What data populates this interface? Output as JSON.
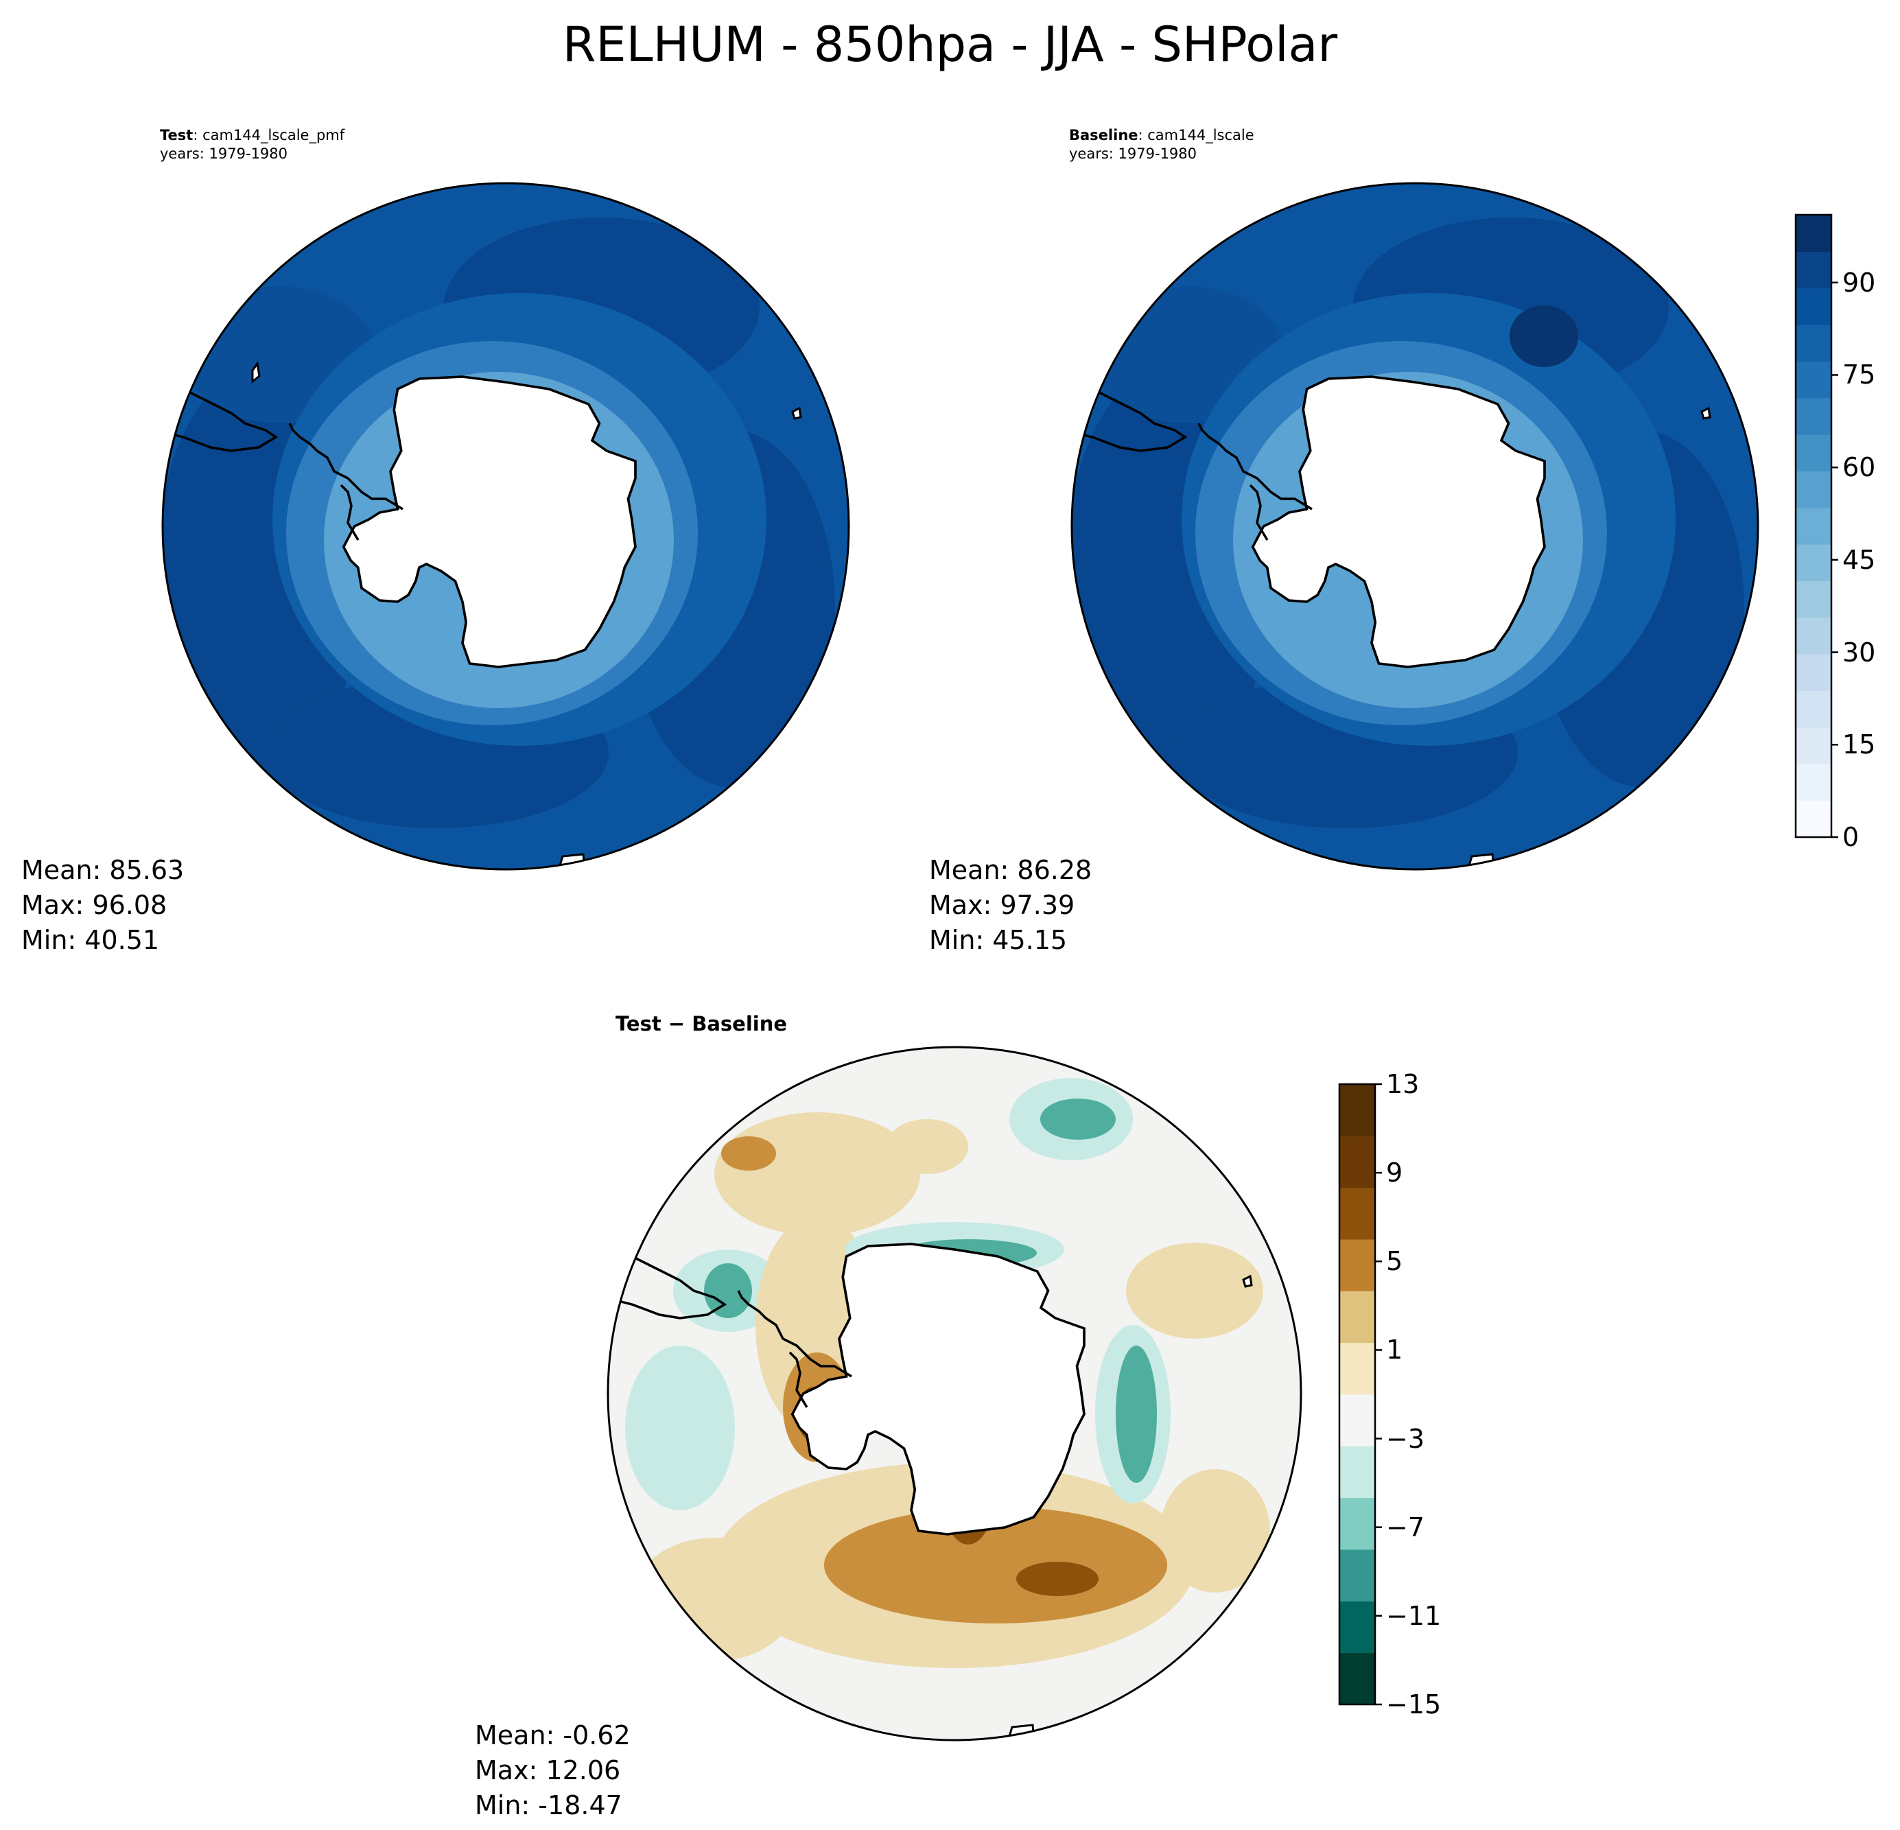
{
  "title": "RELHUM - 850hpa - JJA - SHPolar",
  "panels": {
    "test": {
      "label": "Test",
      "case": ": cam144_lscale_pmf",
      "years": "years: 1979-1980",
      "mean": "Mean: 85.63",
      "max": "Max: 96.08",
      "min": "Min: 40.51"
    },
    "baseline": {
      "label": "Baseline",
      "case": ": cam144_lscale",
      "years": "years: 1979-1980",
      "mean": "Mean: 86.28",
      "max": "Max: 97.39",
      "min": "Min: 45.15"
    },
    "diff": {
      "title": "Test − Baseline",
      "mean": "Mean: -0.62",
      "max": "Max: 12.06",
      "min": "Min: -18.47"
    }
  },
  "colorbars": {
    "abs": {
      "ticks": [
        "0",
        "15",
        "30",
        "45",
        "60",
        "75",
        "90"
      ],
      "colors": [
        "#f7fbff",
        "#eaf3fb",
        "#deebf7",
        "#d2e3f3",
        "#c6dbef",
        "#b2d2e8",
        "#9ecae1",
        "#84bcdb",
        "#6baed6",
        "#58a0ce",
        "#4292c6",
        "#3282be",
        "#2171b5",
        "#1462a8",
        "#08519c",
        "#084487",
        "#08306b"
      ]
    },
    "diff": {
      "ticks": [
        "13",
        "9",
        "5",
        "1",
        "−3",
        "−7",
        "−11",
        "−15"
      ],
      "colors": [
        "#003c30",
        "#01665e",
        "#35978f",
        "#80cdc1",
        "#c7eae5",
        "#f5f5f5",
        "#f6e8c3",
        "#dfc27d",
        "#bf812d",
        "#8c510a",
        "#6b3a06",
        "#543005"
      ]
    }
  },
  "map_colors": {
    "ocean_deep": "#08468f",
    "ocean_mid": "#0b55a0",
    "ocean_light": "#2f7dbf",
    "coast_band": "#5ba3d2",
    "land": "#ffffff",
    "coastline": "#000000",
    "diff_neutral": "#f3f3f1",
    "diff_brown_light": "#ecdcb0",
    "diff_brown": "#c98f3c",
    "diff_brown_dark": "#8c510a",
    "diff_teal_light": "#c7eae5",
    "diff_teal": "#4fae9e"
  }
}
